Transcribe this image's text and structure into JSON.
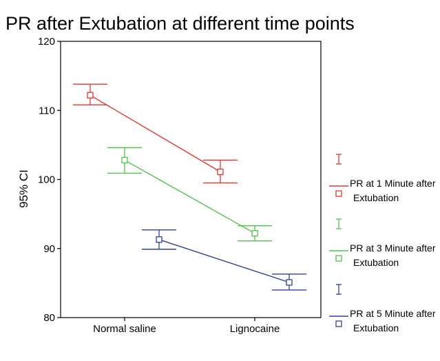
{
  "chart_data": {
    "type": "line",
    "title": "PR after Extubation at different time points",
    "xlabel": "",
    "ylabel": "95% CI",
    "categories": [
      "Normal saline",
      "Lignocaine"
    ],
    "ylim": [
      80,
      120
    ],
    "yticks": [
      "120",
      "110",
      "100",
      "90",
      "80"
    ],
    "grid": false,
    "legend_position": "right",
    "series": [
      {
        "legend_line1": "PR at 1 Minute after",
        "legend_line2": "Extubation",
        "color": "#e8352b",
        "mean": [
          112.2,
          101.1
        ],
        "ci_low": [
          110.8,
          99.5
        ],
        "ci_high": [
          113.8,
          102.8
        ]
      },
      {
        "legend_line1": "PR at 3 Minute after",
        "legend_line2": "Extubation",
        "color": "#4fc44a",
        "mean": [
          102.8,
          92.2
        ],
        "ci_low": [
          100.9,
          91.1
        ],
        "ci_high": [
          104.6,
          93.3
        ]
      },
      {
        "legend_line1": "PR at 5 Minute after",
        "legend_line2": "Extubation",
        "color": "#2e3fa3",
        "mean": [
          91.3,
          85.1
        ],
        "ci_low": [
          89.9,
          84.0
        ],
        "ci_high": [
          92.7,
          86.3
        ]
      }
    ]
  }
}
